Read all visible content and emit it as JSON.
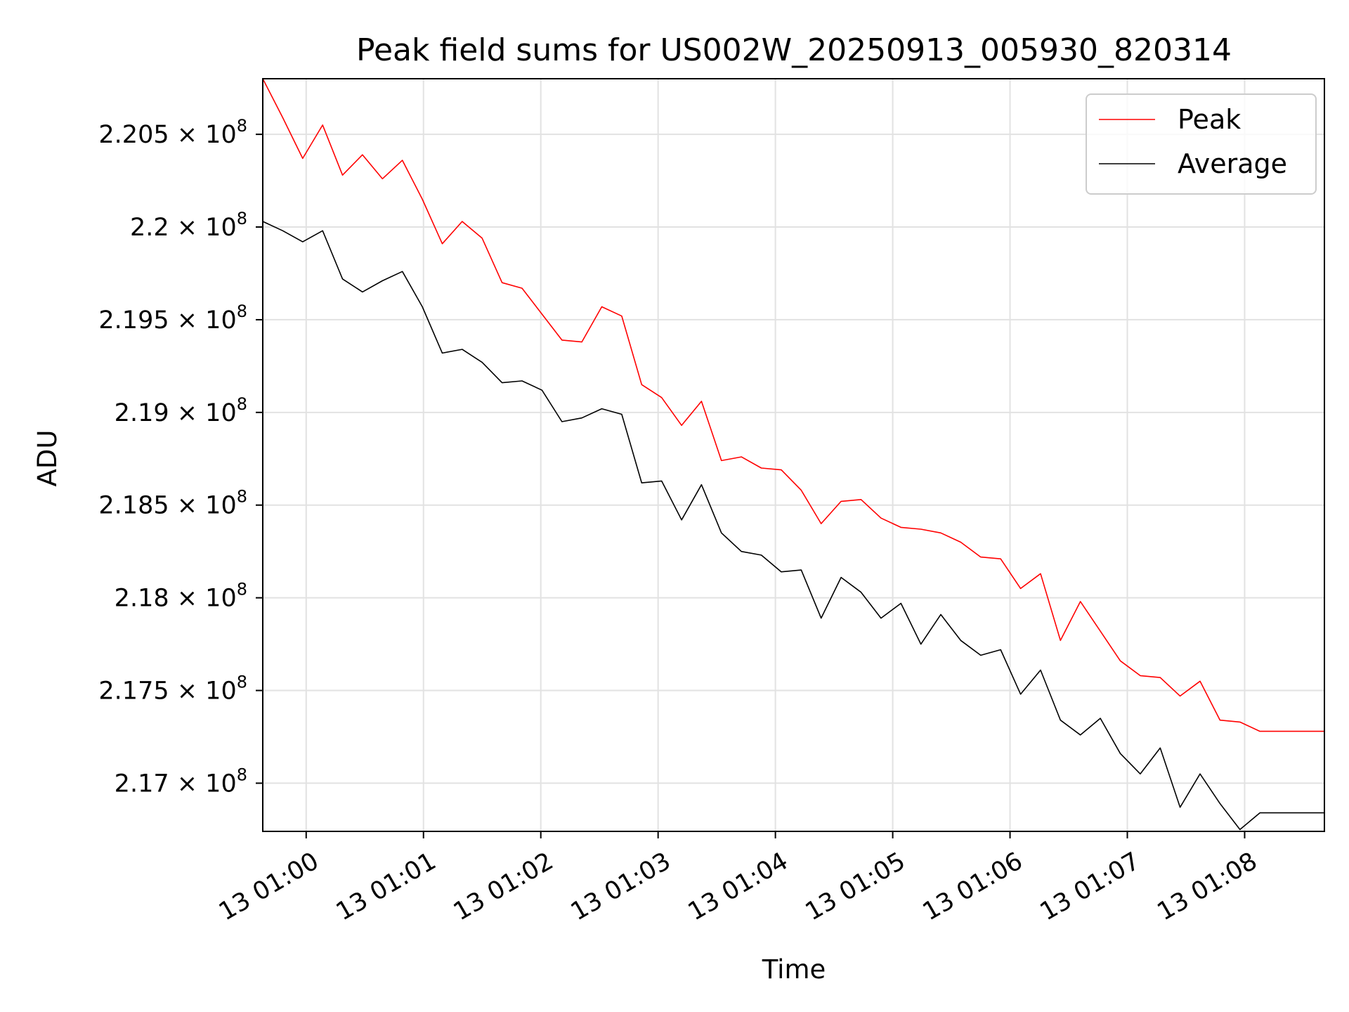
{
  "chart_data": {
    "type": "line",
    "title": "Peak field sums for US002W_20250913_005930_820314",
    "xlabel": "Time",
    "ylabel": "ADU",
    "grid": true,
    "legend_position": "top-right",
    "x_ticks": [
      "13 01:00",
      "13 01:01",
      "13 01:02",
      "13 01:03",
      "13 01:04",
      "13 01:05",
      "13 01:06",
      "13 01:07",
      "13 01:08"
    ],
    "y_ticks": [
      {
        "value": 217000000,
        "mantissa": "2.17",
        "base": "10",
        "exponent": "8"
      },
      {
        "value": 217500000,
        "mantissa": "2.175",
        "base": "10",
        "exponent": "8"
      },
      {
        "value": 218000000,
        "mantissa": "2.18",
        "base": "10",
        "exponent": "8"
      },
      {
        "value": 218500000,
        "mantissa": "2.185",
        "base": "10",
        "exponent": "8"
      },
      {
        "value": 219000000,
        "mantissa": "2.19",
        "base": "10",
        "exponent": "8"
      },
      {
        "value": 219500000,
        "mantissa": "2.195",
        "base": "10",
        "exponent": "8"
      },
      {
        "value": 220000000,
        "mantissa": "2.2",
        "base": "10",
        "exponent": "8"
      },
      {
        "value": 220500000,
        "mantissa": "2.205",
        "base": "10",
        "exponent": "8"
      }
    ],
    "xlim_minutes": [
      -0.37,
      8.68
    ],
    "ylim": [
      216740000,
      220800000
    ],
    "x_minutes": [
      -0.37,
      -0.2,
      -0.03,
      0.14,
      0.31,
      0.48,
      0.65,
      0.82,
      0.99,
      1.16,
      1.33,
      1.5,
      1.67,
      1.84,
      2.01,
      2.18,
      2.35,
      2.52,
      2.69,
      2.86,
      3.03,
      3.2,
      3.37,
      3.54,
      3.71,
      3.88,
      4.05,
      4.22,
      4.39,
      4.56,
      4.73,
      4.9,
      5.07,
      5.24,
      5.41,
      5.58,
      5.75,
      5.92,
      6.09,
      6.26,
      6.43,
      6.6,
      6.77,
      6.94,
      7.11,
      7.28,
      7.45,
      7.62,
      7.79,
      7.96,
      8.13,
      8.3,
      8.47,
      8.68
    ],
    "series": [
      {
        "name": "Peak",
        "color": "#ff0000",
        "values": [
          220800000,
          220590000,
          220370000,
          220550000,
          220280000,
          220390000,
          220260000,
          220360000,
          220150000,
          219910000,
          220030000,
          219940000,
          219700000,
          219670000,
          219530000,
          219390000,
          219380000,
          219570000,
          219520000,
          219150000,
          219080000,
          218930000,
          219060000,
          218740000,
          218760000,
          218700000,
          218690000,
          218580000,
          218400000,
          218520000,
          218530000,
          218430000,
          218380000,
          218370000,
          218350000,
          218300000,
          218220000,
          218210000,
          218050000,
          218130000,
          217770000,
          217980000,
          217820000,
          217660000,
          217580000,
          217570000,
          217470000,
          217550000,
          217340000,
          217330000,
          217280000,
          217280000,
          217280000,
          217280000
        ]
      },
      {
        "name": "Average",
        "color": "#000000",
        "values": [
          220030000,
          219980000,
          219920000,
          219980000,
          219720000,
          219650000,
          219710000,
          219760000,
          219570000,
          219320000,
          219340000,
          219270000,
          219160000,
          219170000,
          219120000,
          218950000,
          218970000,
          219020000,
          218990000,
          218620000,
          218630000,
          218420000,
          218610000,
          218350000,
          218250000,
          218230000,
          218140000,
          218150000,
          217890000,
          218110000,
          218030000,
          217890000,
          217970000,
          217750000,
          217910000,
          217770000,
          217690000,
          217720000,
          217480000,
          217610000,
          217340000,
          217260000,
          217350000,
          217160000,
          217050000,
          217190000,
          216870000,
          217050000,
          216890000,
          216750000,
          216840000,
          216840000,
          216840000,
          216840000
        ]
      }
    ]
  }
}
